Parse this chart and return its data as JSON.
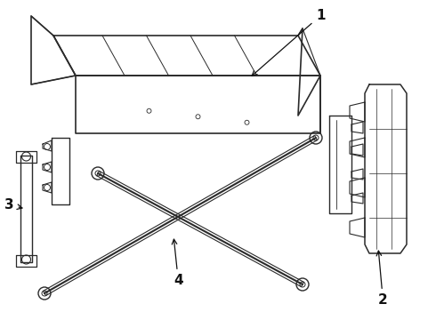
{
  "bg_color": "#ffffff",
  "line_color": "#2a2a2a",
  "label_color": "#111111",
  "fig_w": 4.9,
  "fig_h": 3.6,
  "dpi": 100
}
